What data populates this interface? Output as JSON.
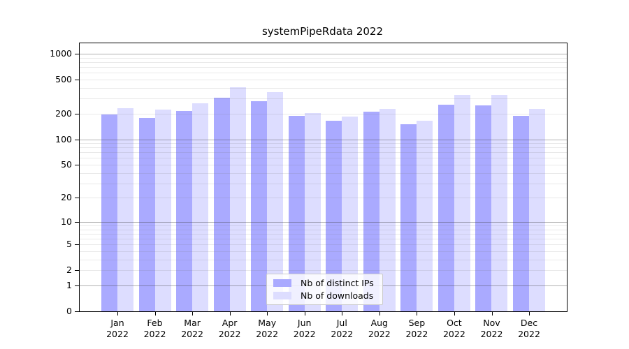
{
  "title": "systemPipeRdata 2022",
  "colors": {
    "bar_ips": "#aaaaff",
    "bar_downloads": "#ddddff",
    "grid_major": "rgba(60,60,60,0.40)",
    "grid_minor": "rgba(120,120,120,0.16)",
    "spine": "#000000",
    "legend_border": "#cccccc",
    "text": "#000000"
  },
  "y_axis": {
    "tick_values": [
      0,
      1,
      2,
      5,
      10,
      20,
      50,
      100,
      200,
      500,
      1000
    ],
    "tick_labels": [
      "0",
      "1",
      "2",
      "5",
      "10",
      "20",
      "50",
      "100",
      "200",
      "500",
      "1000"
    ]
  },
  "x_axis": {
    "months": [
      "Jan",
      "Feb",
      "Mar",
      "Apr",
      "May",
      "Jun",
      "Jul",
      "Aug",
      "Sep",
      "Oct",
      "Nov",
      "Dec"
    ],
    "year": "2022"
  },
  "legend": {
    "items": [
      {
        "label": "Nb of distinct IPs",
        "color_key": "bar_ips"
      },
      {
        "label": "Nb of downloads",
        "color_key": "bar_downloads"
      }
    ]
  },
  "chart_data": {
    "type": "bar",
    "title": "systemPipeRdata 2022",
    "categories": [
      "Jan 2022",
      "Feb 2022",
      "Mar 2022",
      "Apr 2022",
      "May 2022",
      "Jun 2022",
      "Jul 2022",
      "Aug 2022",
      "Sep 2022",
      "Oct 2022",
      "Nov 2022",
      "Dec 2022"
    ],
    "series": [
      {
        "name": "Nb of distinct IPs",
        "values": [
          195,
          178,
          214,
          308,
          277,
          189,
          165,
          212,
          150,
          253,
          248,
          187
        ]
      },
      {
        "name": "Nb of downloads",
        "values": [
          230,
          222,
          266,
          404,
          355,
          203,
          183,
          226,
          165,
          329,
          332,
          228
        ]
      }
    ],
    "xlabel": "",
    "ylabel": "",
    "y_scale": "log10(1+x)",
    "ylim": [
      0,
      1000
    ],
    "grid": true,
    "grid_major_at": [
      1,
      10,
      100,
      1000
    ],
    "legend_position": "inside-bottom-center"
  }
}
